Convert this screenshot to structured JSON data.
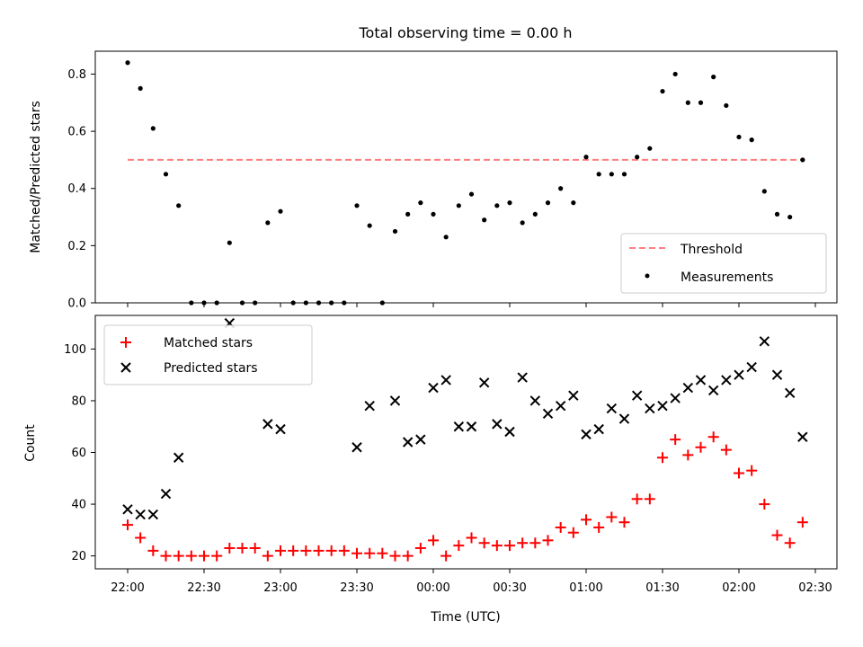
{
  "chart_data": [
    {
      "type": "scatter",
      "title": "Total observing time = 0.00 h",
      "xlabel": "",
      "ylabel": "Matched/Predicted stars",
      "ylim": [
        0,
        0.88
      ],
      "y_ticks": [
        "0.0",
        "0.2",
        "0.4",
        "0.6",
        "0.8"
      ],
      "legend_position": "lower-right",
      "threshold": {
        "name": "Threshold",
        "value": 0.5,
        "color": "#ff7f7f",
        "style": "dashed"
      },
      "series": [
        {
          "name": "Measurements",
          "color": "#000000",
          "x": [
            "22:00",
            "22:05",
            "22:10",
            "22:15",
            "22:20",
            "22:25",
            "22:30",
            "22:35",
            "22:40",
            "22:45",
            "22:50",
            "22:55",
            "23:00",
            "23:05",
            "23:10",
            "23:15",
            "23:20",
            "23:25",
            "23:30",
            "23:35",
            "23:40",
            "23:45",
            "23:50",
            "23:55",
            "00:00",
            "00:05",
            "00:10",
            "00:15",
            "00:20",
            "00:25",
            "00:30",
            "00:35",
            "00:40",
            "00:45",
            "00:50",
            "00:55",
            "01:00",
            "01:05",
            "01:10",
            "01:15",
            "01:20",
            "01:25",
            "01:30",
            "01:35",
            "01:40",
            "01:45",
            "01:50",
            "01:55",
            "02:00",
            "02:05",
            "02:10",
            "02:15",
            "02:20",
            "02:25"
          ],
          "y": [
            0.84,
            0.75,
            0.61,
            0.45,
            0.34,
            0.0,
            0.0,
            0.0,
            0.21,
            0.0,
            0.0,
            0.28,
            0.32,
            0.0,
            0.0,
            0.0,
            0.0,
            0.0,
            0.34,
            0.27,
            0.0,
            0.25,
            0.31,
            0.35,
            0.31,
            0.23,
            0.34,
            0.38,
            0.29,
            0.34,
            0.35,
            0.28,
            0.31,
            0.35,
            0.4,
            0.35,
            0.51,
            0.45,
            0.45,
            0.45,
            0.51,
            0.54,
            0.74,
            0.8,
            0.7,
            0.7,
            0.79,
            0.69,
            0.58,
            0.57,
            0.39,
            0.31,
            0.3,
            0.5
          ]
        }
      ]
    },
    {
      "type": "scatter",
      "title": "",
      "xlabel": "Time (UTC)",
      "ylabel": "Count",
      "ylim": [
        15,
        113
      ],
      "y_ticks": [
        "20",
        "40",
        "60",
        "80",
        "100"
      ],
      "x_ticks": [
        "22:00",
        "22:30",
        "23:00",
        "23:30",
        "00:00",
        "00:30",
        "01:00",
        "01:30",
        "02:00",
        "02:30"
      ],
      "legend_position": "upper-left",
      "x": [
        "22:00",
        "22:05",
        "22:10",
        "22:15",
        "22:20",
        "22:25",
        "22:30",
        "22:35",
        "22:40",
        "22:45",
        "22:50",
        "22:55",
        "23:00",
        "23:05",
        "23:10",
        "23:15",
        "23:20",
        "23:25",
        "23:30",
        "23:35",
        "23:40",
        "23:45",
        "23:50",
        "23:55",
        "00:00",
        "00:05",
        "00:10",
        "00:15",
        "00:20",
        "00:25",
        "00:30",
        "00:35",
        "00:40",
        "00:45",
        "00:50",
        "00:55",
        "01:00",
        "01:05",
        "01:10",
        "01:15",
        "01:20",
        "01:25",
        "01:30",
        "01:35",
        "01:40",
        "01:45",
        "01:50",
        "01:55",
        "02:00",
        "02:05",
        "02:10",
        "02:15",
        "02:20",
        "02:25"
      ],
      "series": [
        {
          "name": "Matched stars",
          "color": "#ff0000",
          "marker": "plus",
          "values": [
            32,
            27,
            22,
            20,
            20,
            20,
            20,
            20,
            23,
            23,
            23,
            20,
            22,
            22,
            22,
            22,
            22,
            22,
            21,
            21,
            21,
            20,
            20,
            23,
            26,
            20,
            24,
            27,
            25,
            24,
            24,
            25,
            25,
            26,
            31,
            29,
            34,
            31,
            35,
            33,
            42,
            42,
            58,
            65,
            59,
            62,
            66,
            61,
            52,
            53,
            40,
            28,
            25,
            33
          ]
        },
        {
          "name": "Predicted stars",
          "color": "#000000",
          "marker": "x",
          "values": [
            38,
            36,
            36,
            44,
            58,
            null,
            null,
            null,
            110,
            null,
            null,
            71,
            69,
            null,
            null,
            null,
            null,
            null,
            62,
            78,
            null,
            80,
            64,
            65,
            85,
            88,
            70,
            70,
            87,
            71,
            68,
            89,
            80,
            75,
            78,
            82,
            67,
            69,
            77,
            73,
            82,
            77,
            78,
            81,
            85,
            88,
            84,
            88,
            90,
            93,
            103,
            90,
            83,
            66
          ]
        }
      ]
    }
  ]
}
